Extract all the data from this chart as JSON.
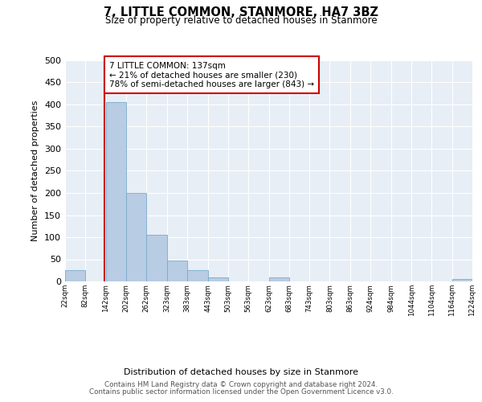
{
  "title": "7, LITTLE COMMON, STANMORE, HA7 3BZ",
  "subtitle": "Size of property relative to detached houses in Stanmore",
  "xlabel": "Distribution of detached houses by size in Stanmore",
  "ylabel": "Number of detached properties",
  "bin_edges": [
    22,
    82,
    142,
    202,
    262,
    323,
    383,
    443,
    503,
    563,
    623,
    683,
    743,
    803,
    863,
    924,
    984,
    1044,
    1104,
    1164,
    1224
  ],
  "bin_labels": [
    "22sqm",
    "82sqm",
    "142sqm",
    "202sqm",
    "262sqm",
    "323sqm",
    "383sqm",
    "443sqm",
    "503sqm",
    "563sqm",
    "623sqm",
    "683sqm",
    "743sqm",
    "803sqm",
    "863sqm",
    "924sqm",
    "984sqm",
    "1044sqm",
    "1104sqm",
    "1164sqm",
    "1224sqm"
  ],
  "counts": [
    26,
    0,
    405,
    200,
    105,
    48,
    25,
    10,
    0,
    0,
    10,
    0,
    0,
    0,
    0,
    0,
    0,
    0,
    0,
    5
  ],
  "bar_color": "#b8cce4",
  "bar_edge_color": "#7aaaca",
  "property_value": 137,
  "property_line_color": "#cc0000",
  "annotation_text": "7 LITTLE COMMON: 137sqm\n← 21% of detached houses are smaller (230)\n78% of semi-detached houses are larger (843) →",
  "annotation_box_color": "#ffffff",
  "annotation_box_edge": "#cc0000",
  "ylim": [
    0,
    500
  ],
  "yticks": [
    0,
    50,
    100,
    150,
    200,
    250,
    300,
    350,
    400,
    450,
    500
  ],
  "plot_background": "#e8eef5",
  "footer_line1": "Contains HM Land Registry data © Crown copyright and database right 2024.",
  "footer_line2": "Contains public sector information licensed under the Open Government Licence v3.0."
}
